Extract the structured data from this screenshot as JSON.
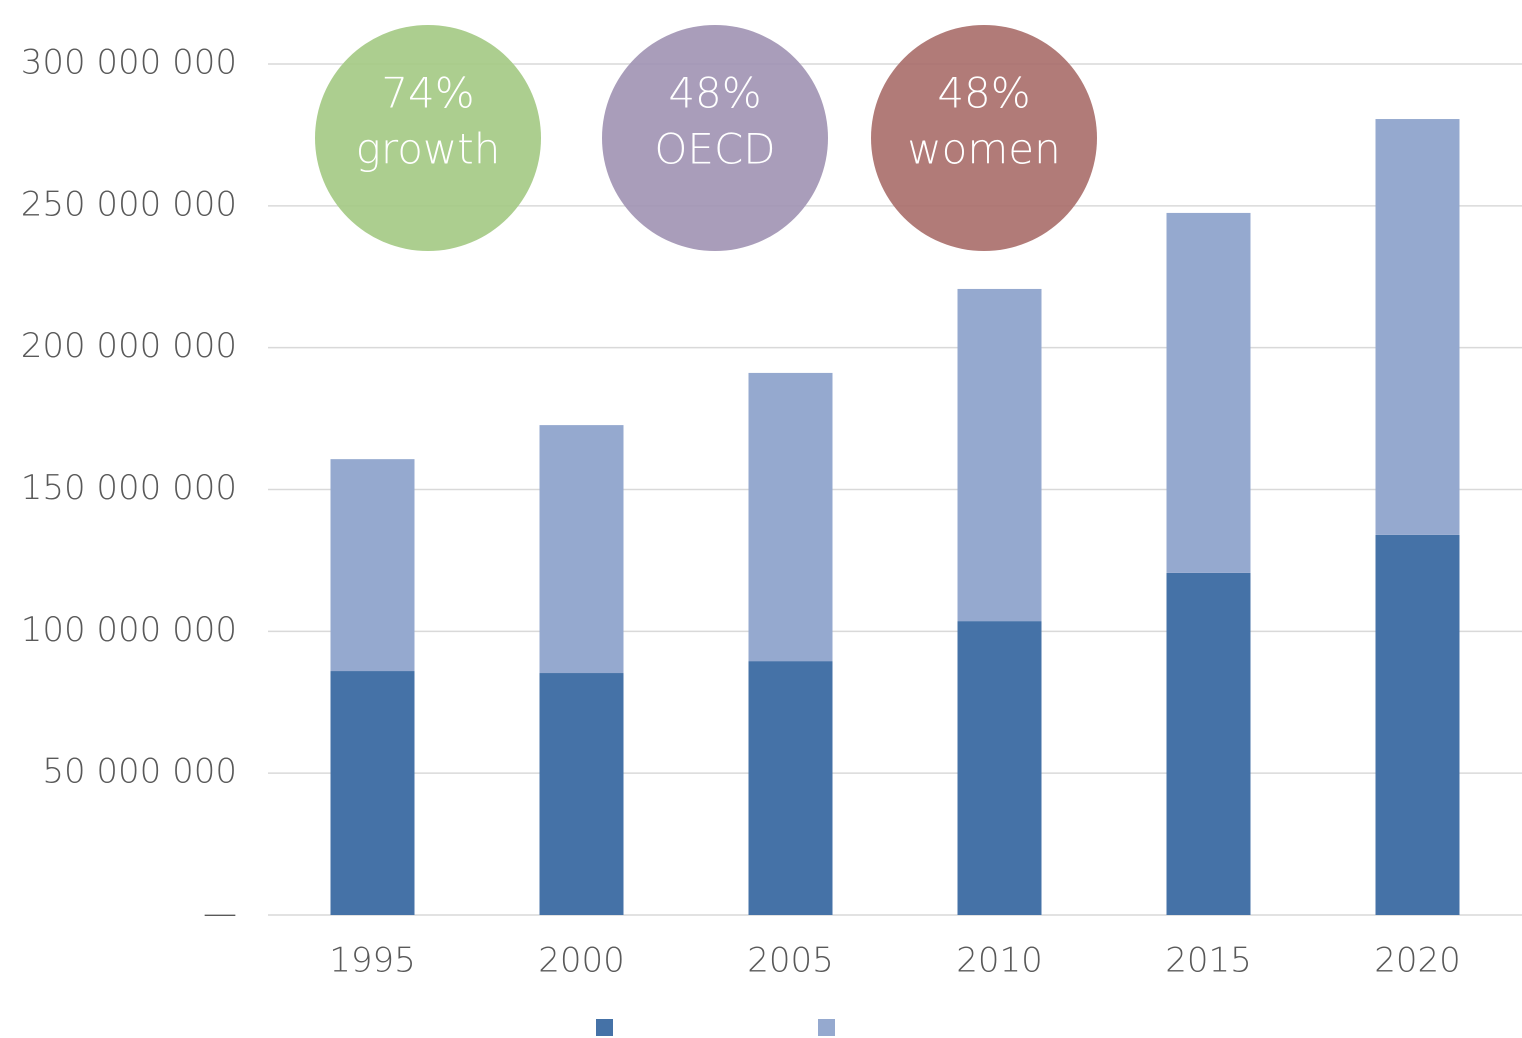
{
  "chart_data": {
    "type": "stacked_bar",
    "categories": [
      "1995",
      "2000",
      "2005",
      "2010",
      "2015",
      "2020"
    ],
    "series": [
      {
        "color": "#4572a7",
        "values": [
          86000000,
          85300000,
          89500000,
          103600000,
          120600000,
          134000000
        ]
      },
      {
        "color": "#95a9cf",
        "values": [
          74700000,
          87400000,
          101600000,
          117100000,
          126900000,
          146600000
        ]
      }
    ],
    "ylim": [
      0,
      300000000
    ],
    "yticks": [
      {
        "value": 0,
        "label": "—"
      },
      {
        "value": 50000000,
        "label": "50 000 000"
      },
      {
        "value": 100000000,
        "label": "100 000 000"
      },
      {
        "value": 150000000,
        "label": "150 000 000"
      },
      {
        "value": 200000000,
        "label": "200 000 000"
      },
      {
        "value": 250000000,
        "label": "250 000 000"
      },
      {
        "value": 300000000,
        "label": "300 000 000"
      }
    ],
    "grid": true,
    "annotations": [
      {
        "value": "74%",
        "text": "growth",
        "color": "#a3c983"
      },
      {
        "value": "48%",
        "text": "OECD",
        "color": "#a092b2"
      },
      {
        "value": "48%",
        "text": "women",
        "color": "#a96d69"
      }
    ]
  }
}
